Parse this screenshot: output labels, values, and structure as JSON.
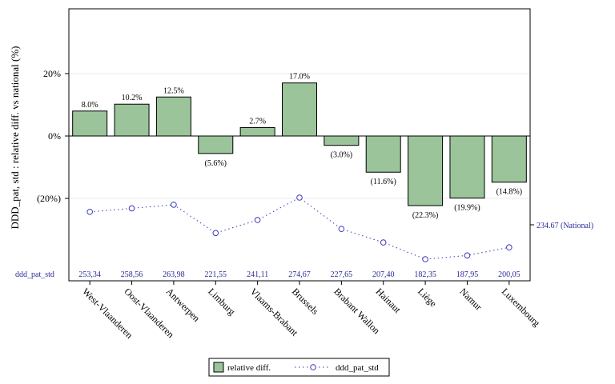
{
  "chart_data": {
    "type": "bar",
    "ylabel": "DDD_pat, std : relative diff. vs national (%)",
    "ylim": [
      -45,
      42
    ],
    "y_ticks": [
      20,
      0,
      -20
    ],
    "y_tick_labels": [
      "20%",
      "0%",
      "(20%)"
    ],
    "grid": "horizontal at tick values",
    "categories": [
      "West-Vlaanderen",
      "Oost-Vlaanderen",
      "Antwerpen",
      "Limburg",
      "Vlaams-Brabant",
      "Brussels",
      "Brabant Wallon",
      "Hainaut",
      "Liège",
      "Namur",
      "Luxembourg"
    ],
    "series": [
      {
        "name": "relative diff.",
        "kind": "bar",
        "color": "#9bc49b",
        "values": [
          8.0,
          10.2,
          12.5,
          -5.6,
          2.7,
          17.0,
          -3.0,
          -11.6,
          -22.3,
          -19.9,
          -14.8
        ],
        "labels": [
          "8.0%",
          "10.2%",
          "12.5%",
          "(5.6%)",
          "2.7%",
          "17.0%",
          "(3.0%)",
          "(11.6%)",
          "(22.3%)",
          "(19.9%)",
          "(14.8%)"
        ]
      },
      {
        "name": "ddd_pat_std",
        "kind": "line-dotted-markers",
        "color": "#3b3bb5",
        "values": [
          253.34,
          258.56,
          263.98,
          221.55,
          241.11,
          274.67,
          227.65,
          207.4,
          182.35,
          187.95,
          200.05
        ],
        "labels": [
          "253,34",
          "258,56",
          "263,98",
          "221,55",
          "241,11",
          "274,67",
          "227,65",
          "207,40",
          "182,35",
          "187,95",
          "200,05"
        ],
        "secondary_range": [
          160,
          340
        ]
      }
    ],
    "row_label": "ddd_pat_std",
    "national_label": "234.67 (National)",
    "national_value": 234.67,
    "legend_position": "bottom-center"
  }
}
